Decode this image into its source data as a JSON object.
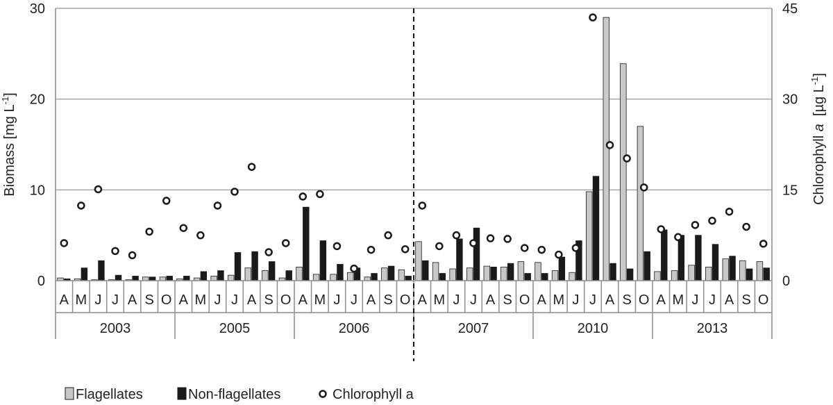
{
  "chart_data": {
    "type": "bar",
    "title": "",
    "ylabel_left": {
      "main": "Biomass [mg L",
      "sup": "-1",
      "end": "]"
    },
    "ylabel_right": {
      "main": "Chlorophyll ",
      "italic": "a",
      "mid": "  [µg L",
      "sup": "-1",
      "end": "]"
    },
    "ylim_left": [
      0,
      30
    ],
    "ylim_right": [
      0,
      45
    ],
    "yticks_left": [
      "0",
      "10",
      "20",
      "30"
    ],
    "yticks_right": [
      "0",
      "15",
      "30",
      "45"
    ],
    "grid": true,
    "legend_position": "bottom-left",
    "colors": {
      "flagellates": "#c8c8c8",
      "non_flagellates": "#1a1a1a",
      "chlorophyll": "#ffffff",
      "grid": "#a6a6a6",
      "axis": "#8c8c8c"
    },
    "divider_after_year": "2006",
    "months": [
      "A",
      "M",
      "J",
      "J",
      "A",
      "S",
      "O"
    ],
    "years": [
      "2003",
      "2005",
      "2006",
      "2007",
      "2010",
      "2013"
    ],
    "series": [
      {
        "name": "Flagellates",
        "values": [
          [
            0.3,
            0.2,
            0.1,
            0.1,
            0.1,
            0.4,
            0.4
          ],
          [
            0.2,
            0.3,
            0.5,
            0.6,
            1.4,
            1.1,
            0.3
          ],
          [
            1.5,
            0.7,
            0.7,
            0.9,
            0.4,
            1.4,
            1.2
          ],
          [
            4.3,
            2.0,
            1.3,
            1.4,
            1.6,
            1.5,
            2.1
          ],
          [
            2.0,
            1.1,
            0.9,
            9.8,
            29.0,
            23.9,
            17.0
          ],
          [
            1.0,
            1.1,
            1.7,
            1.5,
            2.4,
            2.2,
            2.1
          ]
        ]
      },
      {
        "name": "Non-flagellates",
        "values": [
          [
            0.2,
            1.4,
            2.2,
            0.6,
            0.5,
            0.4,
            0.5
          ],
          [
            0.5,
            1.0,
            1.1,
            3.1,
            3.2,
            2.1,
            1.1
          ],
          [
            8.1,
            4.4,
            1.8,
            1.4,
            0.8,
            1.6,
            0.5
          ],
          [
            2.2,
            0.8,
            4.6,
            5.8,
            1.5,
            1.9,
            0.8
          ],
          [
            0.8,
            2.6,
            4.4,
            11.5,
            1.9,
            1.3,
            3.2
          ],
          [
            5.6,
            5.0,
            5.0,
            4.0,
            2.7,
            1.3,
            1.4
          ]
        ]
      },
      {
        "name": "Chlorophyll a",
        "axis": "right",
        "values": [
          [
            6.2,
            12.4,
            15.1,
            4.9,
            4.2,
            8.1,
            13.2
          ],
          [
            8.7,
            7.5,
            12.4,
            14.7,
            18.8,
            4.7,
            6.2
          ],
          [
            13.9,
            14.3,
            5.7,
            2.0,
            5.1,
            7.5,
            5.2
          ],
          [
            12.4,
            5.7,
            7.5,
            6.2,
            7.0,
            6.9,
            5.4
          ],
          [
            5.1,
            4.3,
            5.4,
            43.5,
            22.4,
            20.2,
            15.4
          ],
          [
            8.5,
            7.2,
            9.2,
            9.9,
            11.4,
            8.9,
            6.1
          ]
        ]
      }
    ]
  }
}
